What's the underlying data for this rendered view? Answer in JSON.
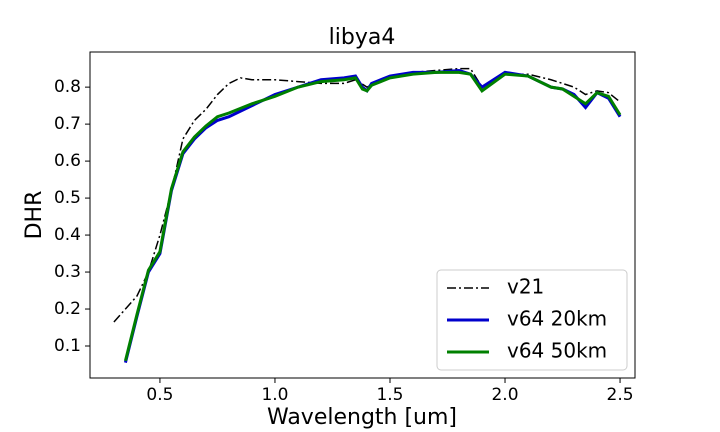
{
  "chart_data": {
    "type": "line",
    "title": "libya4",
    "x_label": "Wavelength [um]",
    "y_label": "DHR",
    "xlim": [
      0.196,
      2.565
    ],
    "ylim": [
      0.0135,
      0.895
    ],
    "xticks": [
      0.5,
      {
        "value": 1,
        "label": "1.0"
      },
      1.5,
      {
        "value": 2,
        "label": "2.0"
      },
      2.5
    ],
    "yticks": [
      0.1,
      0.2,
      0.3,
      0.4,
      0.5,
      0.6,
      0.7,
      0.8
    ],
    "legend": "lower right",
    "grid": false,
    "series": [
      {
        "name": "v21",
        "color": "#000000",
        "style": "dashdot",
        "x": [
          0.3,
          0.35,
          0.4,
          0.45,
          0.5,
          0.55,
          0.6,
          0.65,
          0.7,
          0.75,
          0.8,
          0.85,
          0.9,
          1.0,
          1.1,
          1.2,
          1.3,
          1.35,
          1.4,
          1.5,
          1.6,
          1.7,
          1.8,
          1.85,
          1.9,
          2.0,
          2.1,
          2.2,
          2.3,
          2.35,
          2.4,
          2.45,
          2.5
        ],
        "values": [
          0.165,
          0.2,
          0.235,
          0.3,
          0.4,
          0.52,
          0.66,
          0.71,
          0.74,
          0.78,
          0.81,
          0.825,
          0.82,
          0.82,
          0.815,
          0.81,
          0.81,
          0.82,
          0.8,
          0.83,
          0.84,
          0.845,
          0.85,
          0.85,
          0.8,
          0.835,
          0.835,
          0.82,
          0.8,
          0.78,
          0.79,
          0.785,
          0.76
        ]
      },
      {
        "name": "v64 20km",
        "color": "#0000cc",
        "style": "solid",
        "x": [
          0.35,
          0.4,
          0.45,
          0.5,
          0.55,
          0.6,
          0.65,
          0.7,
          0.75,
          0.8,
          0.9,
          1.0,
          1.1,
          1.2,
          1.3,
          1.35,
          1.38,
          1.4,
          1.42,
          1.5,
          1.6,
          1.7,
          1.8,
          1.85,
          1.9,
          2.0,
          2.1,
          2.2,
          2.25,
          2.3,
          2.35,
          2.4,
          2.45,
          2.5
        ],
        "values": [
          0.055,
          0.18,
          0.3,
          0.35,
          0.52,
          0.62,
          0.66,
          0.69,
          0.71,
          0.72,
          0.75,
          0.78,
          0.8,
          0.82,
          0.825,
          0.83,
          0.8,
          0.79,
          0.81,
          0.83,
          0.84,
          0.84,
          0.845,
          0.835,
          0.8,
          0.84,
          0.83,
          0.8,
          0.795,
          0.78,
          0.745,
          0.785,
          0.77,
          0.72
        ]
      },
      {
        "name": "v64 50km",
        "color": "#008000",
        "style": "solid",
        "x": [
          0.35,
          0.4,
          0.45,
          0.5,
          0.55,
          0.6,
          0.65,
          0.7,
          0.75,
          0.8,
          0.9,
          1.0,
          1.1,
          1.2,
          1.3,
          1.35,
          1.38,
          1.4,
          1.42,
          1.5,
          1.6,
          1.7,
          1.8,
          1.85,
          1.9,
          2.0,
          2.1,
          2.2,
          2.25,
          2.3,
          2.35,
          2.4,
          2.45,
          2.5
        ],
        "values": [
          0.06,
          0.185,
          0.305,
          0.355,
          0.525,
          0.625,
          0.665,
          0.695,
          0.72,
          0.73,
          0.755,
          0.775,
          0.8,
          0.815,
          0.82,
          0.825,
          0.795,
          0.79,
          0.805,
          0.825,
          0.835,
          0.84,
          0.84,
          0.835,
          0.79,
          0.835,
          0.83,
          0.8,
          0.795,
          0.775,
          0.755,
          0.785,
          0.775,
          0.725
        ]
      }
    ]
  }
}
